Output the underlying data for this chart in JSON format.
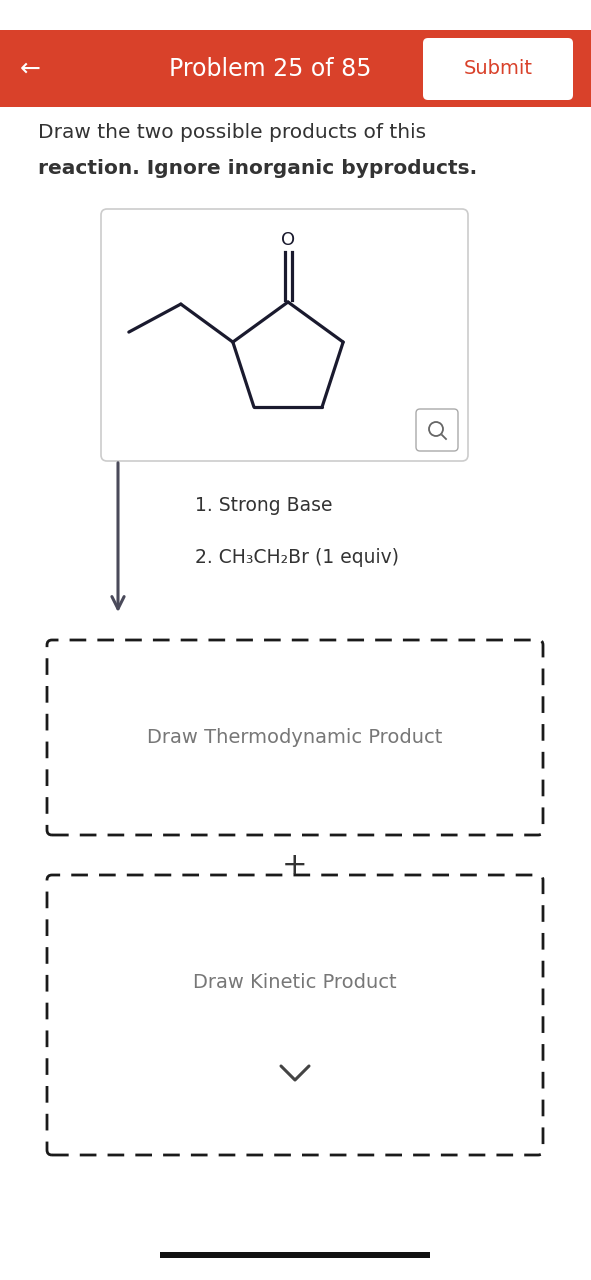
{
  "title": "Problem 25 of 85",
  "submit_text": "Submit",
  "header_bg_color": "#d9412a",
  "header_text_color": "#ffffff",
  "back_arrow": "←",
  "description_line1": "Draw the two possible products of this",
  "description_line2": "reaction. Ignore inorganic byproducts.",
  "reaction_step1": "1. Strong Base",
  "reaction_step2": "2. CH₃CH₂Br (1 equiv)",
  "thermo_label": "Draw Thermodynamic Product",
  "kinetic_label": "Draw Kinetic Product",
  "plus_symbol": "+",
  "bg_color": "#efefef",
  "main_bg": "#ffffff",
  "header_bg_color_2": "#d9412a",
  "arrow_color": "#4a4a5a",
  "dashed_border_color": "#1a1a1a",
  "text_color_dark": "#333333",
  "text_gray": "#777777",
  "ring_color": "#1a1a2e",
  "molecule_border": "#cccccc"
}
